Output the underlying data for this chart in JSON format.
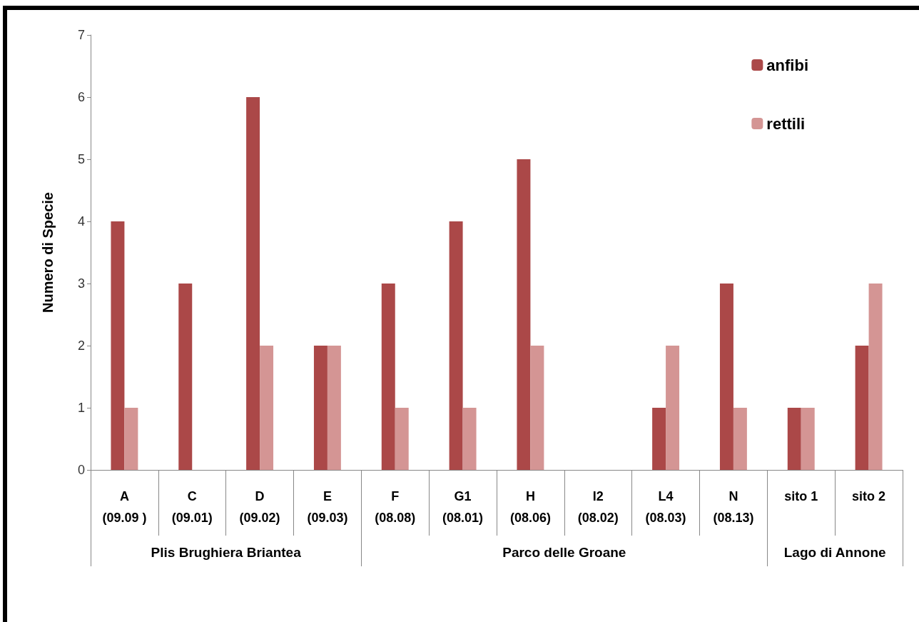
{
  "chart_data": {
    "type": "bar",
    "ylabel": "Numero di Specie",
    "categories": [
      "A\n(09.09 )",
      "C\n(09.01)",
      "D\n(09.02)",
      "E\n(09.03)",
      "F\n(08.08)",
      "G1\n(08.01)",
      "H\n(08.06)",
      "I2\n(08.02)",
      "L4\n(08.03)",
      "N\n(08.13)",
      "sito 1",
      "sito 2"
    ],
    "series": [
      {
        "name": "anfibi",
        "color": "#ab4848",
        "values": [
          4,
          3,
          6,
          2,
          3,
          4,
          5,
          0,
          1,
          3,
          1,
          2
        ]
      },
      {
        "name": "rettili",
        "color": "#d49594",
        "values": [
          1,
          0,
          2,
          2,
          1,
          1,
          2,
          0,
          2,
          1,
          1,
          3
        ]
      }
    ],
    "ylim": [
      0,
      7
    ],
    "yticks": [
      0,
      1,
      2,
      3,
      4,
      5,
      6,
      7
    ],
    "grid": false,
    "legend": "top right",
    "annotations": [
      "Plis Brughiera Briantea",
      "Parco delle Groane",
      "Lago di Annone"
    ]
  }
}
